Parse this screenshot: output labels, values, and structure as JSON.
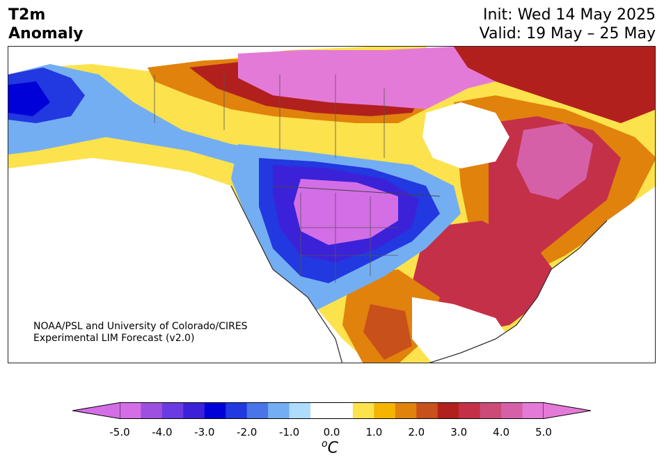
{
  "title": {
    "left_line1": "T2m",
    "left_line2": "Anomaly",
    "init": "Init: Wed 14 May 2025",
    "valid": "Valid: 19 May – 25 May"
  },
  "credit": {
    "line1": "NOAA/PSL and University of Colorado/CIRES",
    "line2": "Experimental LIM Forecast (v2.0)"
  },
  "colorbar": {
    "unit": "C",
    "unit_prefix": "o",
    "ticks": [
      "-5.0",
      "-4.0",
      "-3.0",
      "-2.0",
      "-1.0",
      "0.0",
      "1.0",
      "2.0",
      "3.0",
      "4.0",
      "5.0"
    ],
    "colors": [
      "#d36ee6",
      "#9d4fe0",
      "#6a3be0",
      "#3b22d8",
      "#0000d8",
      "#2238e0",
      "#4a74e8",
      "#74aef2",
      "#aedcfc",
      "#ffffff",
      "#ffffff",
      "#fce24c",
      "#f4b400",
      "#e0820c",
      "#c8501a",
      "#b2201e",
      "#c43048",
      "#cc4a78",
      "#d660a8",
      "#e47ad8"
    ]
  }
}
